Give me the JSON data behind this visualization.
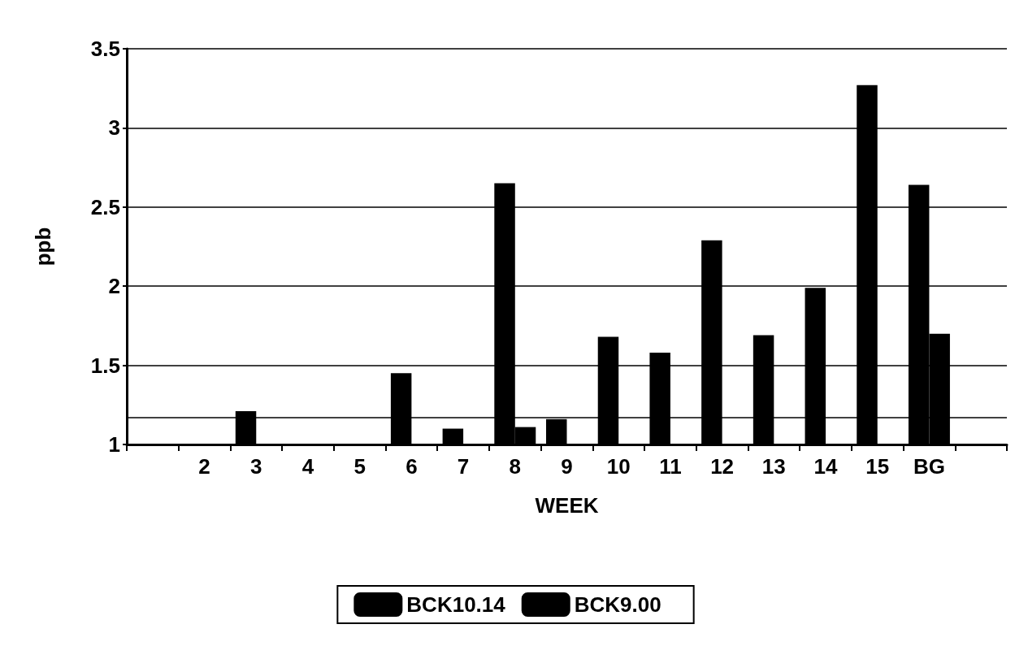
{
  "chart_data": {
    "type": "bar",
    "xlabel": "WEEK",
    "ylabel": "ppb",
    "categories": [
      null,
      "2",
      "3",
      "4",
      "5",
      "6",
      "7",
      "8",
      "9",
      "10",
      "11",
      "12",
      "13",
      "14",
      "15",
      "BG",
      null
    ],
    "series": [
      {
        "name": "BCK10.14",
        "color": "#000000",
        "values": [
          null,
          null,
          1.21,
          null,
          null,
          1.45,
          1.1,
          2.65,
          1.16,
          1.68,
          1.58,
          2.29,
          1.69,
          1.99,
          3.27,
          2.64,
          null
        ]
      },
      {
        "name": "BCK9.00",
        "color": "#000000",
        "values": [
          null,
          null,
          null,
          null,
          null,
          null,
          null,
          1.11,
          null,
          null,
          null,
          null,
          null,
          null,
          null,
          1.7,
          null
        ]
      }
    ],
    "ylim": [
      1,
      3.5
    ],
    "yticks": [
      1,
      1.5,
      2,
      2.5,
      3,
      3.5
    ],
    "grid": "y",
    "legend": "bottom",
    "ref_lines": [
      {
        "axis": "y",
        "value": 1.17,
        "label": null
      }
    ]
  }
}
